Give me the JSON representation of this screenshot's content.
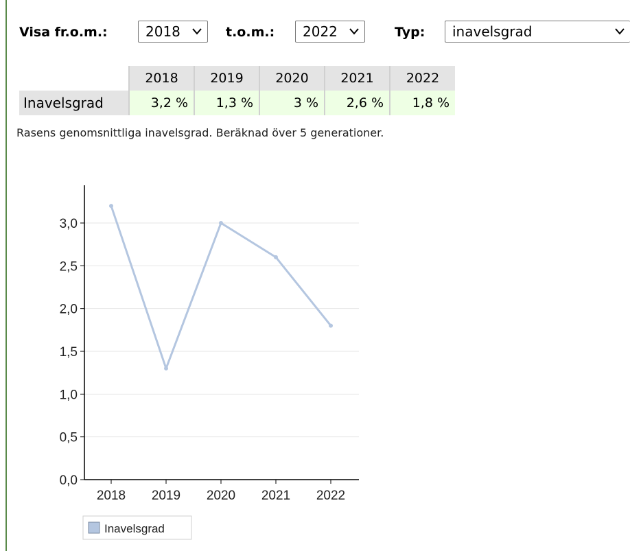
{
  "filters": {
    "from_label": "Visa fr.o.m.:",
    "from_value": "2018",
    "to_label": "t.o.m.:",
    "to_value": "2022",
    "type_label": "Typ:",
    "type_value": "inavelsgrad"
  },
  "table": {
    "years": [
      "2018",
      "2019",
      "2020",
      "2021",
      "2022"
    ],
    "row_label": "Inavelsgrad",
    "values": [
      "3,2 %",
      "1,3 %",
      "3 %",
      "2,6 %",
      "1,8 %"
    ]
  },
  "caption": "Rasens genomsnittliga inavelsgrad. Beräknad över 5 generationer.",
  "chart_data": {
    "type": "line",
    "x": [
      "2018",
      "2019",
      "2020",
      "2021",
      "2022"
    ],
    "series": [
      {
        "name": "Inavelsgrad",
        "values": [
          3.2,
          1.3,
          3.0,
          2.6,
          1.8
        ]
      }
    ],
    "y_ticks": [
      "0,0",
      "0,5",
      "1,0",
      "1,5",
      "2,0",
      "2,5",
      "3,0"
    ],
    "ylim": [
      0,
      3.5
    ],
    "grid": true,
    "legend": "bottom-left",
    "line_color": "#b4c6e0"
  },
  "colors": {
    "header_bg": "#e4e4e4",
    "value_bg": "#eeffe4",
    "accent_rule": "#5a8a4a"
  }
}
